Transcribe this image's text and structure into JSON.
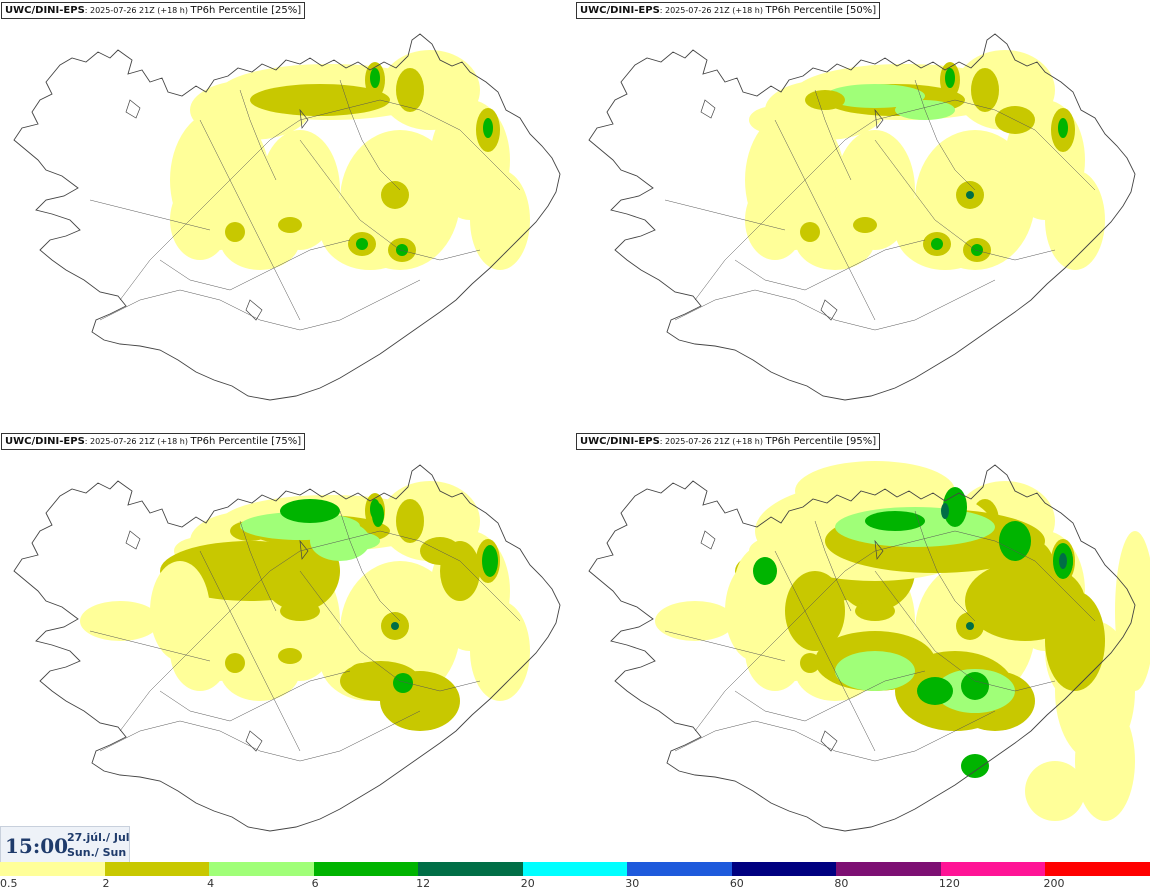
{
  "panels": [
    {
      "source": "UWC/DINI-EPS",
      "run": ": 2025-07-26 21Z (+18 h) ",
      "product": "TP6h Percentile [25%]"
    },
    {
      "source": "UWC/DINI-EPS",
      "run": ": 2025-07-26 21Z (+18 h) ",
      "product": "TP6h Percentile [50%]"
    },
    {
      "source": "UWC/DINI-EPS",
      "run": ": 2025-07-26 21Z (+18 h) ",
      "product": "TP6h Percentile [75%]"
    },
    {
      "source": "UWC/DINI-EPS",
      "run": ": 2025-07-26 21Z (+18 h) ",
      "product": "TP6h Percentile [95%]"
    }
  ],
  "valid_time": {
    "time": "15:00",
    "date_line1": "27.júl./ Jul",
    "date_line2": "Sun./ Sun"
  },
  "legend": {
    "labels": [
      "0.5",
      "2",
      "4",
      "6",
      "12",
      "20",
      "30",
      "60",
      "80",
      "120",
      "200"
    ],
    "colors": [
      "#ffff99",
      "#c8c800",
      "#a0ff78",
      "#00b400",
      "#006e46",
      "#00ffff",
      "#1e5adc",
      "#000080",
      "#7d0f73",
      "#ff1496",
      "#ff0000"
    ]
  },
  "colors": {
    "coast": "#444444",
    "road": "#555555"
  }
}
